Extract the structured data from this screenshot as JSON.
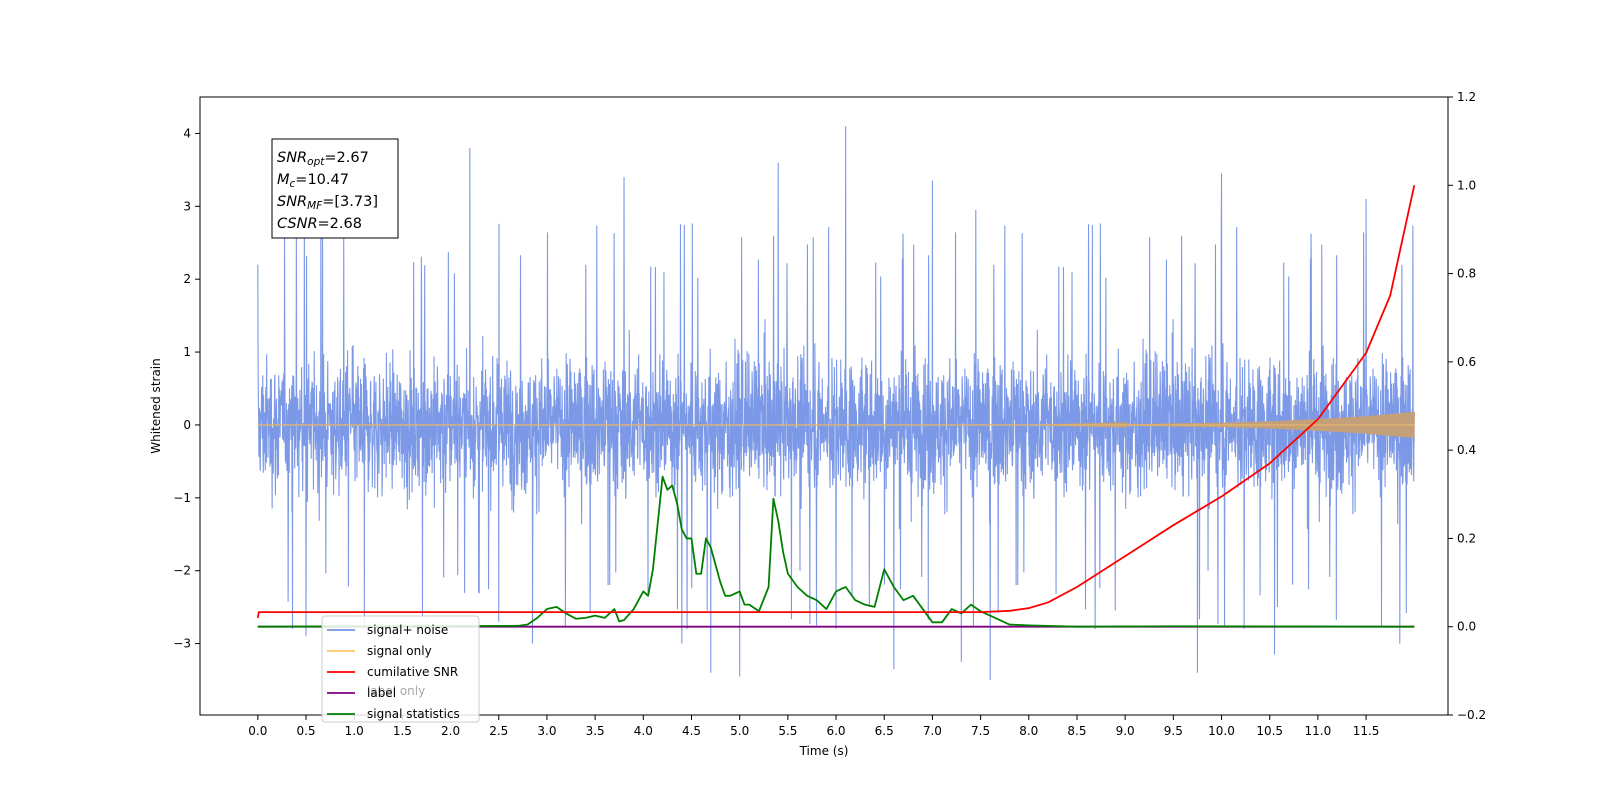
{
  "chart_data": {
    "type": "line",
    "xlabel": "Time (s)",
    "ylabel": "Whitened strain",
    "xlim": [
      -0.6,
      12.35
    ],
    "ylim": [
      -3.98,
      4.5
    ],
    "y2lim": [
      -0.2,
      1.2
    ],
    "x_ticks": [
      "0.0",
      "0.5",
      "1.0",
      "1.5",
      "2.0",
      "2.5",
      "3.0",
      "3.5",
      "4.0",
      "4.5",
      "5.0",
      "5.5",
      "6.0",
      "6.5",
      "7.0",
      "7.5",
      "8.0",
      "8.5",
      "9.0",
      "9.5",
      "10.0",
      "10.5",
      "11.0",
      "11.5"
    ],
    "y_ticks": [
      "4",
      "3",
      "2",
      "1",
      "0",
      "−1",
      "−2",
      "−3"
    ],
    "y2_ticks": [
      "1.2",
      "1.0",
      "0.8",
      "0.6",
      "0.4",
      "0.2",
      "0.0",
      "−0.2"
    ],
    "stats_box": [
      {
        "base": "SNR",
        "sub": "opt",
        "value": "=2.67"
      },
      {
        "base": "M",
        "sub": "c",
        "value": "=10.47"
      },
      {
        "base": "SNR",
        "sub": "MF",
        "value": "=[3.73]"
      },
      {
        "base": "CSNR",
        "sub": "",
        "value": "=2.68"
      }
    ],
    "legend": {
      "placement": "lower-left",
      "entries": [
        {
          "label": "signal+ noise",
          "color": "#7593e6"
        },
        {
          "label": "signal only",
          "color": "#ffc766"
        },
        {
          "label": "cumilative SNR",
          "color": "#ff0000"
        },
        {
          "label": "label",
          "color": "#800080"
        },
        {
          "label": "signal statistics",
          "color": "#008000"
        }
      ]
    },
    "hidden_legend_text": "label only",
    "series": [
      {
        "name": "signal+ noise",
        "axis": "left",
        "color": "#7593e6",
        "noise_band": [
          -1.5,
          1.5
        ],
        "spike_peaks": [
          [
            0.0,
            2.2
          ],
          [
            0.4,
            2.8
          ],
          [
            2.2,
            3.8
          ],
          [
            3.8,
            3.4
          ],
          [
            5.4,
            3.6
          ],
          [
            6.1,
            4.1
          ],
          [
            7.0,
            3.35
          ],
          [
            7.45,
            2.95
          ],
          [
            10.0,
            3.45
          ],
          [
            11.5,
            3.1
          ],
          [
            0.5,
            -2.9
          ],
          [
            2.5,
            -2.7
          ],
          [
            2.85,
            -3.0
          ],
          [
            4.4,
            -3.0
          ],
          [
            4.7,
            -3.4
          ],
          [
            5.0,
            -3.45
          ],
          [
            6.6,
            -3.35
          ],
          [
            7.3,
            -3.25
          ],
          [
            7.6,
            -3.5
          ],
          [
            9.75,
            -3.4
          ],
          [
            10.55,
            -3.15
          ],
          [
            11.85,
            -3.0
          ]
        ]
      },
      {
        "name": "signal only",
        "axis": "left",
        "color": "#ffc766",
        "envelope": [
          [
            0.0,
            0.0
          ],
          [
            8.0,
            0.0
          ],
          [
            9.0,
            0.01
          ],
          [
            10.0,
            0.03
          ],
          [
            10.5,
            0.05
          ],
          [
            11.0,
            0.08
          ],
          [
            11.5,
            0.12
          ],
          [
            12.0,
            0.18
          ]
        ]
      },
      {
        "name": "cumilative SNR",
        "axis": "right",
        "color": "#ff0000",
        "x": [
          0.0,
          0.01,
          7.5,
          7.8,
          8.0,
          8.2,
          8.5,
          9.0,
          9.5,
          10.0,
          10.5,
          11.0,
          11.5,
          11.75,
          12.0
        ],
        "y": [
          0.02,
          0.033,
          0.033,
          0.036,
          0.042,
          0.055,
          0.09,
          0.16,
          0.23,
          0.295,
          0.37,
          0.47,
          0.62,
          0.75,
          1.0
        ]
      },
      {
        "name": "label",
        "axis": "right",
        "color": "#800080",
        "x": [
          0.0,
          12.0
        ],
        "y": [
          0.0,
          0.0
        ]
      },
      {
        "name": "signal statistics",
        "axis": "right",
        "color": "#008000",
        "x": [
          0.0,
          2.7,
          2.8,
          2.9,
          3.0,
          3.1,
          3.2,
          3.3,
          3.4,
          3.5,
          3.6,
          3.7,
          3.75,
          3.8,
          3.9,
          4.0,
          4.05,
          4.1,
          4.2,
          4.25,
          4.3,
          4.35,
          4.4,
          4.45,
          4.5,
          4.55,
          4.6,
          4.65,
          4.7,
          4.75,
          4.8,
          4.85,
          4.9,
          5.0,
          5.05,
          5.1,
          5.2,
          5.3,
          5.35,
          5.4,
          5.45,
          5.5,
          5.6,
          5.7,
          5.8,
          5.9,
          6.0,
          6.1,
          6.2,
          6.3,
          6.4,
          6.5,
          6.6,
          6.7,
          6.8,
          6.9,
          7.0,
          7.1,
          7.2,
          7.3,
          7.4,
          7.5,
          7.6,
          7.7,
          7.8,
          8.0,
          8.5,
          9.5,
          12.0
        ],
        "y": [
          0.0,
          0.002,
          0.005,
          0.02,
          0.04,
          0.045,
          0.03,
          0.018,
          0.02,
          0.025,
          0.02,
          0.04,
          0.012,
          0.015,
          0.04,
          0.08,
          0.07,
          0.13,
          0.34,
          0.31,
          0.32,
          0.28,
          0.22,
          0.2,
          0.2,
          0.12,
          0.12,
          0.2,
          0.18,
          0.14,
          0.1,
          0.07,
          0.07,
          0.08,
          0.05,
          0.05,
          0.035,
          0.09,
          0.29,
          0.24,
          0.17,
          0.12,
          0.09,
          0.07,
          0.06,
          0.04,
          0.08,
          0.09,
          0.06,
          0.05,
          0.045,
          0.13,
          0.09,
          0.06,
          0.07,
          0.04,
          0.01,
          0.01,
          0.04,
          0.03,
          0.05,
          0.035,
          0.025,
          0.015,
          0.005,
          0.003,
          0.0,
          0.001,
          0.0
        ]
      }
    ]
  }
}
